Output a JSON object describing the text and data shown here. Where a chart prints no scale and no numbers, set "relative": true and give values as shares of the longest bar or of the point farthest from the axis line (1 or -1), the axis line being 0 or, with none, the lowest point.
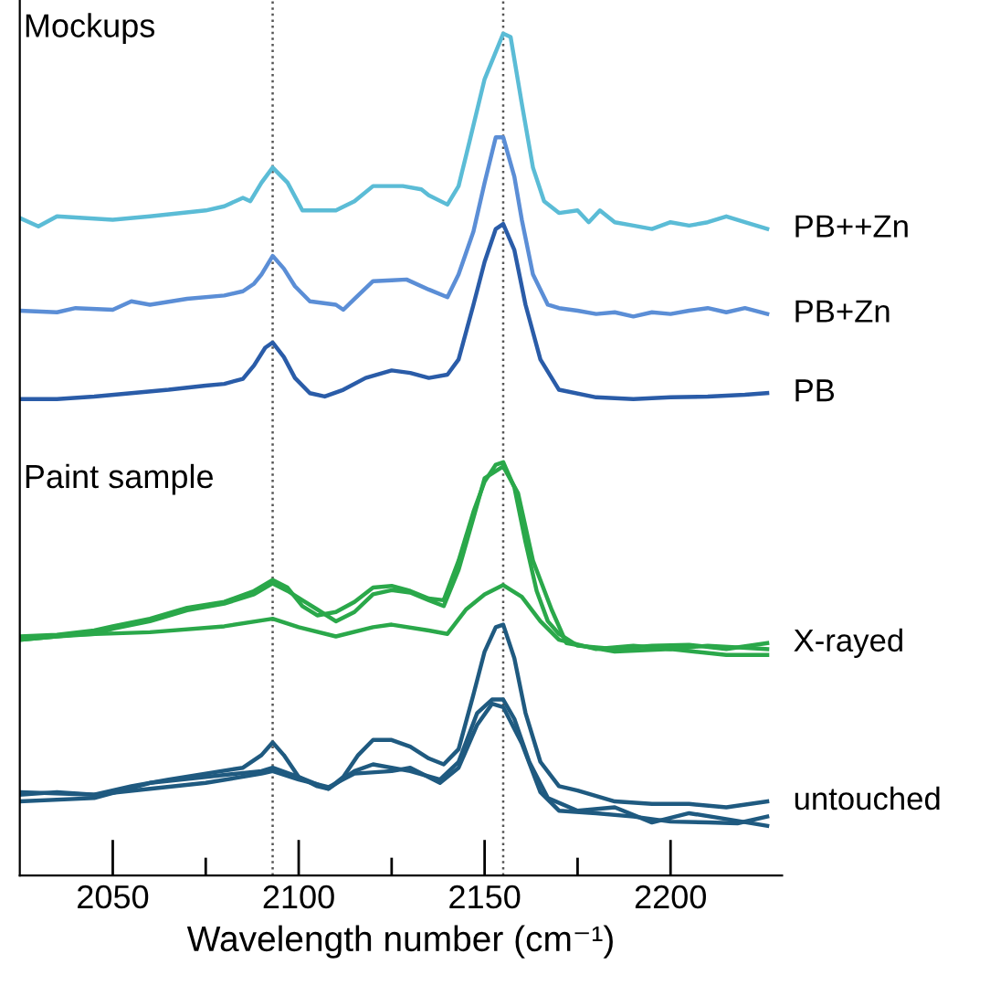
{
  "chart_data": {
    "type": "line",
    "relative": true,
    "xlabel": "Wavelength number (cm⁻¹)",
    "annotations": [
      "Mockups",
      "Paint sample"
    ],
    "xlim": [
      2025,
      2230
    ],
    "xticks": [
      2050,
      {
        "value": 2075,
        "label": null
      },
      2100,
      {
        "value": 2125,
        "label": null
      },
      2150,
      {
        "value": 2175,
        "label": null
      },
      2200
    ],
    "ref_lines": [
      {
        "axis": "x",
        "value": 2093,
        "color": "#555555",
        "line_style": "dotted"
      },
      {
        "axis": "x",
        "value": 2155,
        "color": "#555555",
        "line_style": "dotted"
      }
    ],
    "grid": false,
    "legend": false,
    "line_style": "solid",
    "marker": "none",
    "series": [
      {
        "name": "PB++Zn",
        "color": "#5bbcd6",
        "x": [
          2025,
          2030,
          2035,
          2050,
          2060,
          2075,
          2080,
          2085,
          2087,
          2090,
          2093,
          2097,
          2101,
          2110,
          2115,
          2120,
          2128,
          2133,
          2135,
          2140,
          2143,
          2146,
          2150,
          2155,
          2157,
          2160,
          2163,
          2166,
          2170,
          2175,
          2178,
          2181,
          2185,
          2190,
          2195,
          2200,
          2205,
          2210,
          2215,
          2220,
          2226
        ],
        "values": [
          0.781,
          0.771,
          0.783,
          0.779,
          0.783,
          0.79,
          0.795,
          0.805,
          0.801,
          0.823,
          0.841,
          0.823,
          0.79,
          0.79,
          0.801,
          0.819,
          0.819,
          0.815,
          0.808,
          0.797,
          0.819,
          0.873,
          0.946,
          1,
          0.996,
          0.917,
          0.841,
          0.801,
          0.787,
          0.79,
          0.776,
          0.79,
          0.776,
          0.772,
          0.768,
          0.776,
          0.772,
          0.776,
          0.783,
          0.776,
          0.768
        ]
      },
      {
        "name": "PB+Zn",
        "color": "#5b8ed6",
        "x": [
          2025,
          2035,
          2040,
          2050,
          2055,
          2060,
          2070,
          2080,
          2085,
          2088,
          2090,
          2093,
          2096,
          2099,
          2103,
          2110,
          2112,
          2115,
          2120,
          2125,
          2129,
          2135,
          2140,
          2143,
          2147,
          2150,
          2153,
          2155,
          2158,
          2160,
          2163,
          2167,
          2170,
          2175,
          2180,
          2185,
          2190,
          2195,
          2200,
          2205,
          2210,
          2215,
          2220,
          2226
        ],
        "values": [
          0.671,
          0.669,
          0.674,
          0.672,
          0.682,
          0.678,
          0.685,
          0.689,
          0.694,
          0.703,
          0.714,
          0.736,
          0.721,
          0.7,
          0.682,
          0.678,
          0.672,
          0.685,
          0.706,
          0.707,
          0.708,
          0.696,
          0.687,
          0.714,
          0.765,
          0.823,
          0.877,
          0.877,
          0.83,
          0.779,
          0.714,
          0.678,
          0.674,
          0.671,
          0.667,
          0.669,
          0.664,
          0.669,
          0.667,
          0.671,
          0.674,
          0.669,
          0.674,
          0.667
        ]
      },
      {
        "name": "PB",
        "color": "#2a5ca8",
        "x": [
          2025,
          2035,
          2045,
          2055,
          2065,
          2075,
          2080,
          2085,
          2088,
          2091,
          2093,
          2096,
          2099,
          2103,
          2107,
          2112,
          2118,
          2125,
          2130,
          2135,
          2140,
          2143,
          2147,
          2150,
          2153,
          2155,
          2158,
          2161,
          2165,
          2170,
          2180,
          2190,
          2200,
          2210,
          2220,
          2226
        ],
        "values": [
          0.566,
          0.566,
          0.569,
          0.573,
          0.577,
          0.582,
          0.584,
          0.59,
          0.606,
          0.627,
          0.633,
          0.616,
          0.591,
          0.573,
          0.569,
          0.577,
          0.591,
          0.6,
          0.597,
          0.591,
          0.595,
          0.613,
          0.678,
          0.729,
          0.768,
          0.774,
          0.743,
          0.678,
          0.613,
          0.577,
          0.568,
          0.566,
          0.568,
          0.569,
          0.571,
          0.573
        ]
      },
      {
        "name": "X-rayed",
        "color": "#2aa84a",
        "x": [
          2025,
          2035,
          2045,
          2050,
          2060,
          2070,
          2080,
          2088,
          2093,
          2097,
          2101,
          2105,
          2110,
          2115,
          2120,
          2125,
          2130,
          2135,
          2139,
          2143,
          2147,
          2150,
          2153,
          2155,
          2158,
          2161,
          2164,
          2167,
          2170,
          2175,
          2185,
          2195,
          2205,
          2215,
          2226
        ],
        "values": [
          0.284,
          0.286,
          0.291,
          0.296,
          0.305,
          0.318,
          0.325,
          0.338,
          0.351,
          0.342,
          0.32,
          0.309,
          0.313,
          0.325,
          0.342,
          0.344,
          0.338,
          0.329,
          0.327,
          0.374,
          0.432,
          0.468,
          0.488,
          0.491,
          0.461,
          0.396,
          0.338,
          0.302,
          0.287,
          0.273,
          0.269,
          0.273,
          0.274,
          0.269,
          0.276
        ]
      },
      {
        "color": "#2aa84a",
        "x": [
          2025,
          2035,
          2045,
          2050,
          2060,
          2070,
          2080,
          2088,
          2093,
          2097,
          2101,
          2105,
          2110,
          2115,
          2120,
          2125,
          2130,
          2135,
          2139,
          2143,
          2147,
          2150,
          2155,
          2159,
          2163,
          2168,
          2172,
          2185,
          2200,
          2215,
          2226
        ],
        "values": [
          0.28,
          0.284,
          0.287,
          0.293,
          0.302,
          0.315,
          0.323,
          0.334,
          0.347,
          0.338,
          0.327,
          0.316,
          0.302,
          0.313,
          0.334,
          0.339,
          0.336,
          0.327,
          0.32,
          0.363,
          0.425,
          0.472,
          0.486,
          0.454,
          0.374,
          0.316,
          0.276,
          0.266,
          0.269,
          0.262,
          0.262
        ]
      },
      {
        "color": "#2aa84a",
        "x": [
          2025,
          2040,
          2060,
          2080,
          2093,
          2100,
          2110,
          2120,
          2125,
          2135,
          2140,
          2145,
          2150,
          2155,
          2160,
          2165,
          2170,
          2180,
          2190,
          2200,
          2210,
          2226
        ],
        "values": [
          0.28,
          0.286,
          0.289,
          0.296,
          0.305,
          0.295,
          0.284,
          0.295,
          0.298,
          0.291,
          0.287,
          0.316,
          0.334,
          0.345,
          0.331,
          0.302,
          0.28,
          0.269,
          0.273,
          0.269,
          0.273,
          0.269
        ]
      },
      {
        "name": "untouched",
        "color": "#1f5a80",
        "x": [
          2025,
          2035,
          2045,
          2055,
          2065,
          2075,
          2085,
          2090,
          2093,
          2096,
          2100,
          2105,
          2108,
          2112,
          2116,
          2120,
          2125,
          2130,
          2135,
          2139,
          2143,
          2147,
          2150,
          2153,
          2155,
          2158,
          2161,
          2165,
          2170,
          2175,
          2185,
          2195,
          2205,
          2215,
          2226
        ],
        "values": [
          0.096,
          0.099,
          0.096,
          0.106,
          0.114,
          0.121,
          0.128,
          0.143,
          0.158,
          0.143,
          0.117,
          0.106,
          0.103,
          0.117,
          0.143,
          0.161,
          0.161,
          0.153,
          0.139,
          0.132,
          0.15,
          0.215,
          0.266,
          0.295,
          0.298,
          0.258,
          0.193,
          0.135,
          0.106,
          0.101,
          0.088,
          0.085,
          0.085,
          0.081,
          0.088
        ]
      },
      {
        "color": "#1f5a80",
        "x": [
          2025,
          2045,
          2060,
          2075,
          2090,
          2093,
          2100,
          2108,
          2115,
          2120,
          2130,
          2138,
          2143,
          2148,
          2152,
          2155,
          2158,
          2162,
          2167,
          2175,
          2185,
          2195,
          2205,
          2215,
          2226
        ],
        "values": [
          0.088,
          0.092,
          0.11,
          0.117,
          0.124,
          0.128,
          0.117,
          0.103,
          0.124,
          0.132,
          0.124,
          0.114,
          0.135,
          0.193,
          0.209,
          0.209,
          0.186,
          0.135,
          0.092,
          0.077,
          0.081,
          0.063,
          0.074,
          0.067,
          0.059
        ]
      },
      {
        "color": "#1f5a80",
        "x": [
          2025,
          2045,
          2060,
          2075,
          2090,
          2093,
          2100,
          2108,
          2115,
          2125,
          2130,
          2138,
          2143,
          2148,
          2152,
          2155,
          2160,
          2165,
          2170,
          2180,
          2190,
          2200,
          2210,
          2218,
          2226
        ],
        "values": [
          0.099,
          0.096,
          0.103,
          0.11,
          0.121,
          0.124,
          0.114,
          0.105,
          0.121,
          0.124,
          0.128,
          0.11,
          0.128,
          0.179,
          0.204,
          0.2,
          0.157,
          0.099,
          0.077,
          0.074,
          0.07,
          0.064,
          0.063,
          0.062,
          0.07
        ]
      }
    ]
  }
}
